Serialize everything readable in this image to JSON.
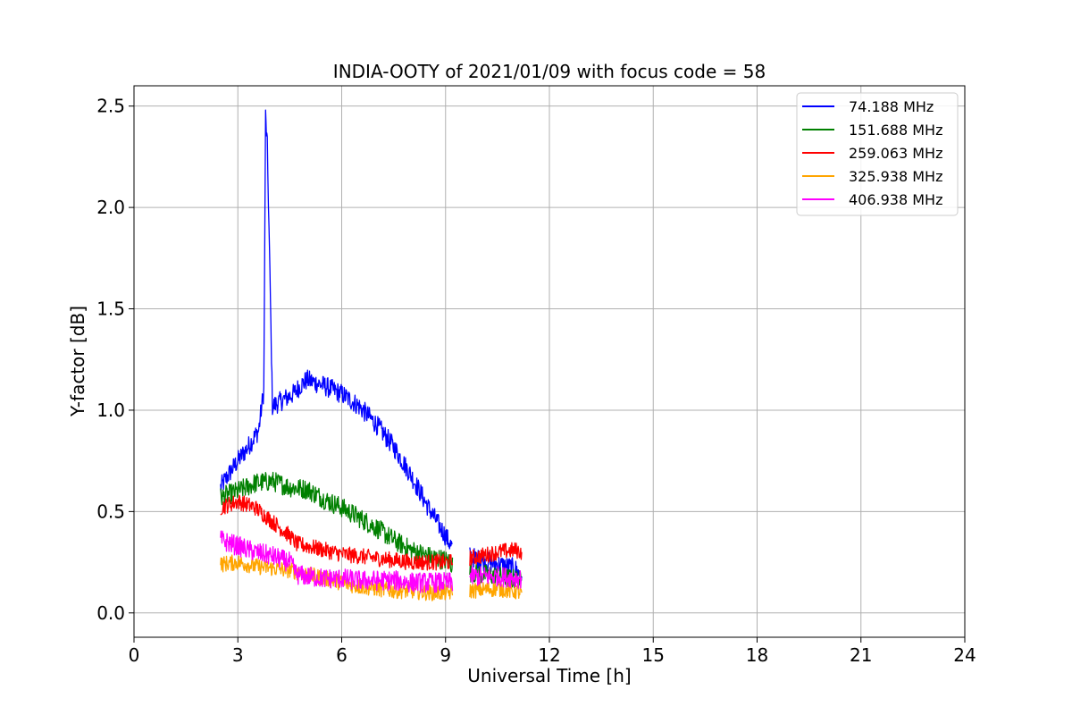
{
  "chart_data": {
    "type": "line",
    "title": "INDIA-OOTY of 2021/01/09 with focus code = 58",
    "xlabel": "Universal Time [h]",
    "ylabel": "Y-factor [dB]",
    "xlim": [
      0,
      24
    ],
    "ylim": [
      -0.12,
      2.6
    ],
    "xticks": [
      0,
      3,
      6,
      9,
      12,
      15,
      18,
      21,
      24
    ],
    "xtick_labels": [
      "0",
      "3",
      "6",
      "9",
      "12",
      "15",
      "18",
      "21",
      "24"
    ],
    "yticks": [
      0.0,
      0.5,
      1.0,
      1.5,
      2.0,
      2.5
    ],
    "ytick_labels": [
      "0.0",
      "0.5",
      "1.0",
      "1.5",
      "2.0",
      "2.5"
    ],
    "grid": true,
    "legend_position": "top-right",
    "series": [
      {
        "name": " 74.188 MHz",
        "color": "#0000ff",
        "x": [
          2.5,
          2.8,
          3.0,
          3.3,
          3.6,
          3.75,
          3.8,
          3.85,
          3.9,
          4.0,
          4.3,
          4.6,
          4.8,
          5.0,
          5.5,
          6.0,
          6.5,
          7.0,
          7.5,
          8.0,
          8.5,
          9.0,
          9.2,
          9.7,
          10.0,
          10.5,
          11.0,
          11.2
        ],
        "y": [
          0.62,
          0.7,
          0.75,
          0.82,
          0.9,
          1.1,
          2.45,
          2.3,
          1.9,
          1.02,
          1.05,
          1.08,
          1.12,
          1.15,
          1.12,
          1.08,
          1.02,
          0.93,
          0.82,
          0.68,
          0.52,
          0.38,
          0.32,
          0.28,
          0.26,
          0.24,
          0.22,
          0.18
        ],
        "noise": 0.05
      },
      {
        "name": "151.688 MHz",
        "color": "#008000",
        "x": [
          2.5,
          3.0,
          3.5,
          4.0,
          4.5,
          5.0,
          5.5,
          6.0,
          6.5,
          7.0,
          7.5,
          8.0,
          8.5,
          9.0,
          9.2,
          9.7,
          10.5,
          11.2
        ],
        "y": [
          0.57,
          0.6,
          0.64,
          0.65,
          0.62,
          0.61,
          0.56,
          0.52,
          0.47,
          0.42,
          0.36,
          0.31,
          0.28,
          0.26,
          0.24,
          0.2,
          0.18,
          0.16
        ],
        "noise": 0.05
      },
      {
        "name": "259.063 MHz",
        "color": "#ff0000",
        "x": [
          2.5,
          3.0,
          3.5,
          4.0,
          4.5,
          4.7,
          5.0,
          5.5,
          6.0,
          6.5,
          7.0,
          7.5,
          8.0,
          8.5,
          9.0,
          9.2,
          9.7,
          10.0,
          10.5,
          11.0,
          11.2
        ],
        "y": [
          0.52,
          0.55,
          0.52,
          0.45,
          0.38,
          0.34,
          0.33,
          0.31,
          0.29,
          0.28,
          0.27,
          0.26,
          0.25,
          0.25,
          0.25,
          0.25,
          0.27,
          0.28,
          0.3,
          0.31,
          0.3
        ],
        "noise": 0.04
      },
      {
        "name": "325.938 MHz",
        "color": "#ffa500",
        "x": [
          2.5,
          3.0,
          3.5,
          4.0,
          4.5,
          5.0,
          5.5,
          6.0,
          6.5,
          7.0,
          7.5,
          8.0,
          8.5,
          9.0,
          9.2,
          9.7,
          10.5,
          11.2
        ],
        "y": [
          0.24,
          0.25,
          0.23,
          0.22,
          0.21,
          0.19,
          0.17,
          0.15,
          0.13,
          0.12,
          0.11,
          0.11,
          0.1,
          0.1,
          0.1,
          0.11,
          0.12,
          0.1
        ],
        "noise": 0.04
      },
      {
        "name": "406.938 MHz",
        "color": "#ff00ff",
        "x": [
          2.5,
          3.0,
          3.5,
          4.0,
          4.5,
          4.7,
          5.0,
          5.5,
          6.0,
          6.5,
          7.0,
          7.5,
          8.0,
          8.5,
          9.0,
          9.2,
          9.7,
          10.5,
          11.2
        ],
        "y": [
          0.36,
          0.33,
          0.3,
          0.28,
          0.25,
          0.19,
          0.18,
          0.17,
          0.17,
          0.16,
          0.16,
          0.16,
          0.15,
          0.15,
          0.15,
          0.15,
          0.18,
          0.18,
          0.17
        ],
        "noise": 0.05
      }
    ]
  }
}
